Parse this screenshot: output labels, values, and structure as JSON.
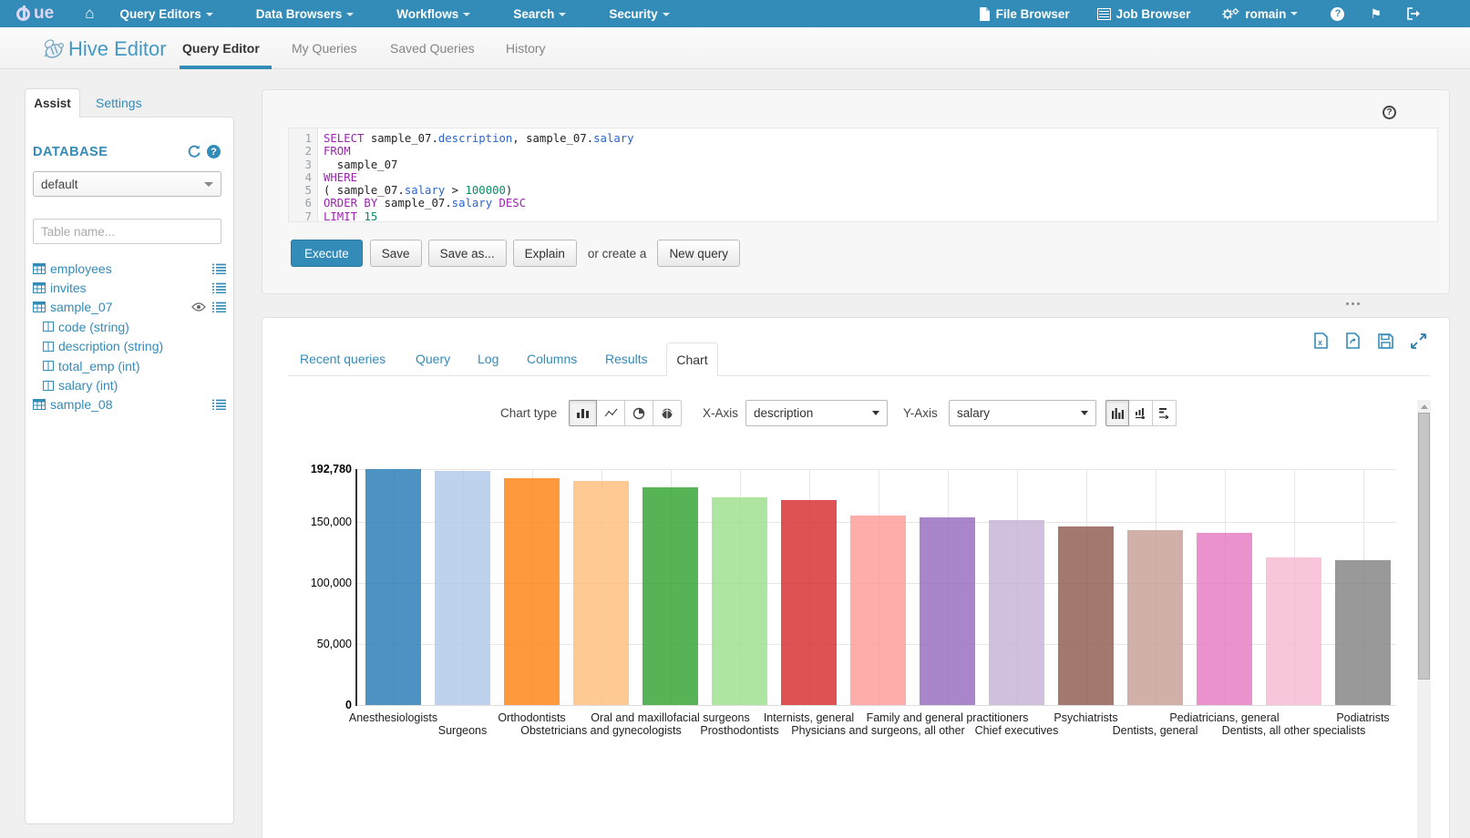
{
  "navbar": {
    "brand": "HUE",
    "items": [
      "Query Editors",
      "Data Browsers",
      "Workflows",
      "Search",
      "Security"
    ],
    "right": {
      "file_browser": "File Browser",
      "job_browser": "Job Browser",
      "user": "romain"
    }
  },
  "subheader": {
    "app_title": "Hive Editor",
    "tabs": [
      "Query Editor",
      "My Queries",
      "Saved Queries",
      "History"
    ],
    "active_tab": "Query Editor"
  },
  "assist": {
    "tabs": [
      "Assist",
      "Settings"
    ],
    "active_tab": "Assist",
    "section_title": "DATABASE",
    "database_value": "default",
    "table_filter_placeholder": "Table name...",
    "tables": [
      {
        "name": "employees",
        "type": "table"
      },
      {
        "name": "invites",
        "type": "table"
      },
      {
        "name": "sample_07",
        "type": "table",
        "watched": true,
        "columns": [
          "code (string)",
          "description (string)",
          "total_emp (int)",
          "salary (int)"
        ]
      },
      {
        "name": "sample_08",
        "type": "table"
      }
    ]
  },
  "editor": {
    "line_numbers": [
      "1",
      "2",
      "3",
      "4",
      "5",
      "6",
      "7"
    ],
    "lines": [
      [
        [
          "kw",
          "SELECT"
        ],
        [
          "pl",
          " sample_07."
        ],
        [
          "col",
          "description"
        ],
        [
          "pl",
          ", sample_07."
        ],
        [
          "col",
          "salary"
        ]
      ],
      [
        [
          "kw",
          "FROM"
        ]
      ],
      [
        [
          "pl",
          "  sample_07"
        ]
      ],
      [
        [
          "kw",
          "WHERE"
        ]
      ],
      [
        [
          "pl",
          "( sample_07."
        ],
        [
          "col",
          "salary"
        ],
        [
          "pl",
          " > "
        ],
        [
          "num",
          "100000"
        ],
        [
          "pl",
          ")"
        ]
      ],
      [
        [
          "kw",
          "ORDER BY"
        ],
        [
          "pl",
          " sample_07."
        ],
        [
          "col",
          "salary"
        ],
        [
          "pl",
          " "
        ],
        [
          "kw",
          "DESC"
        ]
      ],
      [
        [
          "kw",
          "LIMIT"
        ],
        [
          "pl",
          " "
        ],
        [
          "num",
          "15"
        ]
      ]
    ]
  },
  "actions": {
    "execute": "Execute",
    "save": "Save",
    "save_as": "Save as...",
    "explain": "Explain",
    "or_create": "or create a",
    "new_query": "New query"
  },
  "results": {
    "tabs": [
      "Recent queries",
      "Query",
      "Log",
      "Columns",
      "Results",
      "Chart"
    ],
    "active_tab": "Chart",
    "chart_type_label": "Chart type",
    "x_axis_label": "X-Axis",
    "x_axis_value": "description",
    "y_axis_label": "Y-Axis",
    "y_axis_value": "salary"
  },
  "chart_data": {
    "type": "bar",
    "title": "",
    "xlabel": "description",
    "ylabel": "salary",
    "categories": [
      "Anesthesiologists",
      "Surgeons",
      "Orthodontists",
      "Obstetricians and gynecologists",
      "Oral and maxillofacial surgeons",
      "Prosthodontists",
      "Internists, general",
      "Physicians and surgeons, all other",
      "Family and general practitioners",
      "Chief executives",
      "Psychiatrists",
      "Dentists, general",
      "Pediatricians, general",
      "Dentists, all other specialists",
      "Podiatrists"
    ],
    "values": [
      192780,
      191410,
      185340,
      183600,
      178440,
      169810,
      167270,
      155150,
      153640,
      151370,
      146150,
      142870,
      140690,
      120360,
      118500
    ],
    "colors": [
      "#1f77b4",
      "#aec7e8",
      "#ff7f0e",
      "#ffbb78",
      "#2ca02c",
      "#98df8a",
      "#d62728",
      "#ff9896",
      "#9467bd",
      "#c5b0d5",
      "#8c564b",
      "#c49c94",
      "#e377c2",
      "#f7b6d2",
      "#7f7f7f"
    ],
    "ylim": [
      0,
      192780
    ],
    "yticks": [
      0,
      50000,
      100000,
      150000,
      192780
    ],
    "ytick_labels": [
      "0",
      "50,000",
      "100,000",
      "150,000",
      "192,780"
    ],
    "grid": true,
    "legend": "none",
    "label_layout": "staggered"
  }
}
